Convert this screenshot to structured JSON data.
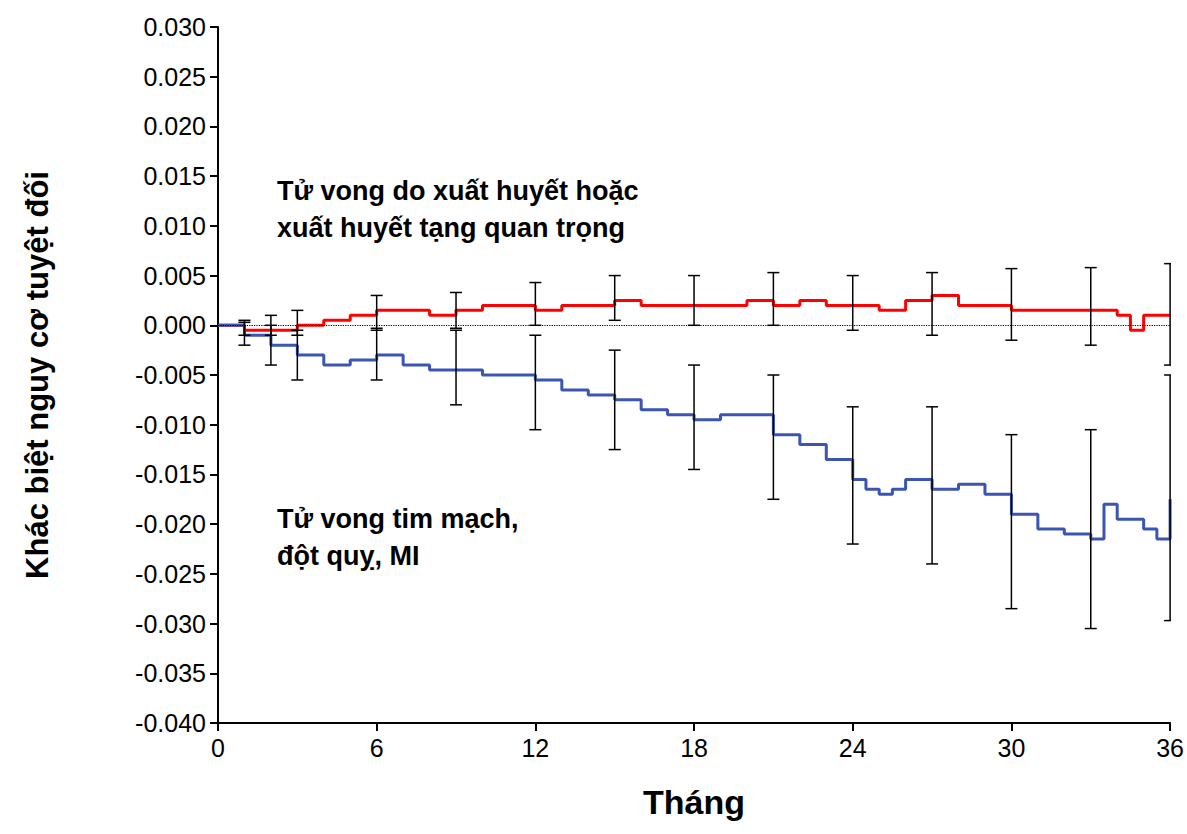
{
  "chart_data": {
    "type": "step",
    "x_label": "Tháng",
    "y_label": "Khác biệt nguy cơ tuyệt đối",
    "xlim": [
      0,
      36
    ],
    "xticks": [
      0,
      6,
      12,
      18,
      24,
      30,
      36
    ],
    "ylim": [
      -0.04,
      0.03
    ],
    "yticks": [
      {
        "value": -0.04,
        "label": "-0.040"
      },
      {
        "value": -0.035,
        "label": "-0.035"
      },
      {
        "value": -0.03,
        "label": "-0.030"
      },
      {
        "value": -0.025,
        "label": "-0.025"
      },
      {
        "value": -0.02,
        "label": "-0.020"
      },
      {
        "value": -0.015,
        "label": "-0.015"
      },
      {
        "value": -0.01,
        "label": "-0.010"
      },
      {
        "value": -0.005,
        "label": "-0.005"
      },
      {
        "value": 0,
        "label": "0.000"
      },
      {
        "value": 0.005,
        "label": "0.005"
      },
      {
        "value": 0.01,
        "label": "0.010"
      },
      {
        "value": 0.015,
        "label": "0.015"
      },
      {
        "value": 0.02,
        "label": "0.020"
      },
      {
        "value": 0.025,
        "label": "0.025"
      },
      {
        "value": 0.03,
        "label": "0.030"
      }
    ],
    "grid": false,
    "reference_lines": [
      {
        "y": 0,
        "line_style": "dotted"
      }
    ],
    "series": [
      {
        "name": "Tử vong do xuất huyết hoặc\nxuất huyết tạng quan trọng",
        "color": "#ff0000",
        "marker": "none",
        "line_style": "solid",
        "x": [
          0,
          1,
          2,
          3,
          4,
          5,
          6,
          7,
          8,
          9,
          10,
          11,
          12,
          13,
          14,
          15,
          16,
          17,
          18,
          19,
          20,
          21,
          22,
          23,
          24,
          25,
          26,
          27,
          28,
          29,
          30,
          31,
          32,
          33,
          34,
          34.5,
          35,
          36
        ],
        "values": [
          0,
          -0.0005,
          -0.0005,
          0,
          0.0005,
          0.001,
          0.0015,
          0.0015,
          0.001,
          0.0015,
          0.002,
          0.002,
          0.0015,
          0.002,
          0.002,
          0.0025,
          0.002,
          0.002,
          0.002,
          0.002,
          0.0025,
          0.002,
          0.0025,
          0.002,
          0.002,
          0.0015,
          0.0025,
          0.003,
          0.002,
          0.002,
          0.0015,
          0.0015,
          0.0015,
          0.0015,
          0.001,
          -0.0005,
          0.001,
          0.001
        ],
        "error_bars": [
          {
            "x": 1,
            "low": -0.001,
            "high": 0.0005
          },
          {
            "x": 2,
            "low": -0.001,
            "high": 0.001
          },
          {
            "x": 3,
            "low": -0.001,
            "high": 0.0015
          },
          {
            "x": 6,
            "low": -0.0005,
            "high": 0.003
          },
          {
            "x": 9,
            "low": -0.0003,
            "high": 0.0033
          },
          {
            "x": 12,
            "low": 0,
            "high": 0.0043
          },
          {
            "x": 15,
            "low": 0.0005,
            "high": 0.005
          },
          {
            "x": 18,
            "low": 0,
            "high": 0.005
          },
          {
            "x": 21,
            "low": 0,
            "high": 0.0053
          },
          {
            "x": 24,
            "low": -0.0005,
            "high": 0.005
          },
          {
            "x": 27,
            "low": -0.001,
            "high": 0.0053
          },
          {
            "x": 30,
            "low": -0.0015,
            "high": 0.0057
          },
          {
            "x": 33,
            "low": -0.002,
            "high": 0.0058
          },
          {
            "x": 36,
            "low": -0.004,
            "high": 0.0062
          }
        ]
      },
      {
        "name": "Tử vong tim mạch,\nđột quỵ, MI",
        "color": "#3a55b4",
        "marker": "none",
        "line_style": "solid",
        "x": [
          0,
          1,
          2,
          3,
          4,
          5,
          6,
          7,
          8,
          9,
          10,
          11,
          12,
          13,
          14,
          15,
          16,
          17,
          18,
          19,
          20,
          21,
          22,
          23,
          24,
          24.5,
          25,
          25.5,
          26,
          27,
          28,
          29,
          30,
          31,
          32,
          33,
          33.5,
          34,
          35,
          35.5,
          36
        ],
        "values": [
          0,
          -0.001,
          -0.002,
          -0.003,
          -0.004,
          -0.0035,
          -0.003,
          -0.004,
          -0.0045,
          -0.0045,
          -0.005,
          -0.005,
          -0.0055,
          -0.0065,
          -0.007,
          -0.0075,
          -0.0085,
          -0.009,
          -0.0095,
          -0.009,
          -0.009,
          -0.011,
          -0.012,
          -0.0135,
          -0.0155,
          -0.0165,
          -0.017,
          -0.0165,
          -0.0155,
          -0.0165,
          -0.016,
          -0.017,
          -0.019,
          -0.0205,
          -0.021,
          -0.0215,
          -0.018,
          -0.0195,
          -0.0205,
          -0.0215,
          -0.0175
        ],
        "error_bars": [
          {
            "x": 1,
            "low": -0.002,
            "high": 0.0003
          },
          {
            "x": 2,
            "low": -0.004,
            "high": 0
          },
          {
            "x": 3,
            "low": -0.0055,
            "high": -0.0005
          },
          {
            "x": 6,
            "low": -0.0055,
            "high": -0.0003
          },
          {
            "x": 9,
            "low": -0.008,
            "high": -0.0005
          },
          {
            "x": 12,
            "low": -0.0105,
            "high": -0.001
          },
          {
            "x": 15,
            "low": -0.0125,
            "high": -0.0025
          },
          {
            "x": 18,
            "low": -0.0145,
            "high": -0.004
          },
          {
            "x": 21,
            "low": -0.0175,
            "high": -0.005
          },
          {
            "x": 24,
            "low": -0.022,
            "high": -0.0082
          },
          {
            "x": 27,
            "low": -0.024,
            "high": -0.0082
          },
          {
            "x": 30,
            "low": -0.0285,
            "high": -0.011
          },
          {
            "x": 33,
            "low": -0.0305,
            "high": -0.0105
          },
          {
            "x": 36,
            "low": -0.0297,
            "high": -0.005
          }
        ]
      }
    ]
  }
}
